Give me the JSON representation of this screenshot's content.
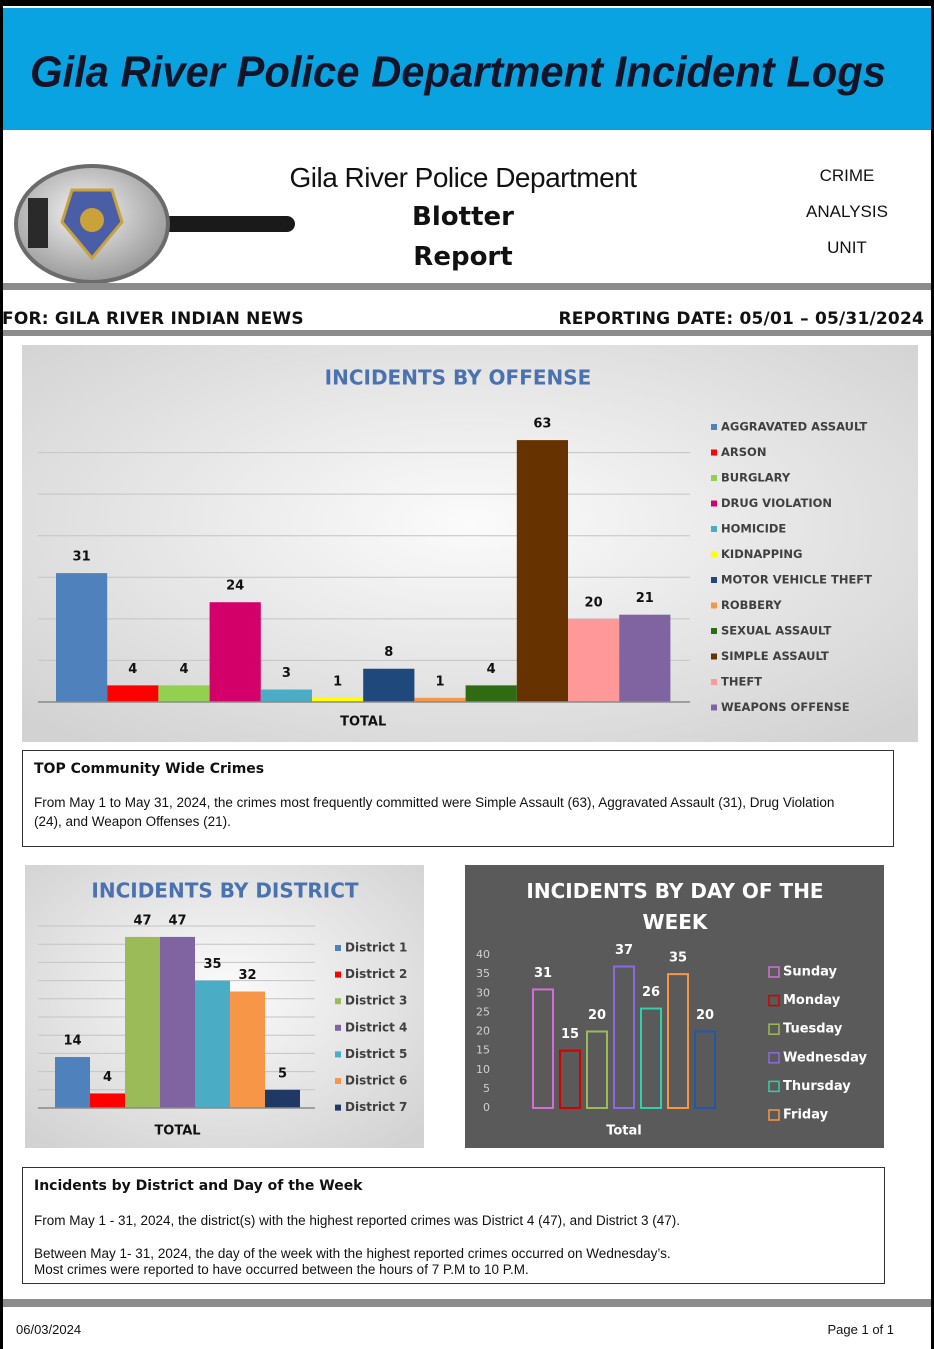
{
  "header": {
    "title": "Gila River Police Department Incident Logs",
    "department": "Gila River Police Department",
    "report_line1": "Blotter",
    "report_line2": "Report",
    "unit": [
      "CRIME",
      "ANALYSIS",
      "UNIT"
    ]
  },
  "banner": {
    "for": "FOR: GILA RIVER INDIAN NEWS",
    "reporting_date": "REPORTING DATE: 05/01 – 05/31/2024"
  },
  "chart_data": [
    {
      "type": "bar",
      "title": "INCIDENTS BY OFFENSE",
      "categories": [
        "TOTAL"
      ],
      "series": [
        {
          "name": "AGGRAVATED ASSAULT",
          "color": "#4f81bd",
          "values": [
            31
          ]
        },
        {
          "name": "ARSON",
          "color": "#ff0000",
          "values": [
            4
          ]
        },
        {
          "name": "BURGLARY",
          "color": "#92d050",
          "values": [
            4
          ]
        },
        {
          "name": "DRUG VIOLATION",
          "color": "#d4006a",
          "values": [
            24
          ]
        },
        {
          "name": "HOMICIDE",
          "color": "#4bacc6",
          "values": [
            3
          ]
        },
        {
          "name": "KIDNAPPING",
          "color": "#ffff00",
          "values": [
            1
          ]
        },
        {
          "name": "MOTOR VEHICLE THEFT",
          "color": "#1f497d",
          "values": [
            8
          ]
        },
        {
          "name": "ROBBERY",
          "color": "#f79646",
          "values": [
            1
          ]
        },
        {
          "name": "SEXUAL ASSAULT",
          "color": "#2f6b12",
          "values": [
            4
          ]
        },
        {
          "name": "SIMPLE ASSAULT",
          "color": "#663300",
          "values": [
            63
          ]
        },
        {
          "name": "THEFT",
          "color": "#ff9999",
          "values": [
            20
          ]
        },
        {
          "name": "WEAPONS OFFENSE",
          "color": "#8064a2",
          "values": [
            21
          ]
        }
      ],
      "ylim": [
        0,
        70
      ],
      "yticks": [
        0,
        10,
        20,
        30,
        40,
        50,
        60
      ],
      "grid": true,
      "legend": "right"
    },
    {
      "type": "bar",
      "title": "INCIDENTS BY DISTRICT",
      "categories": [
        "TOTAL"
      ],
      "series": [
        {
          "name": "District 1",
          "color": "#4f81bd",
          "values": [
            14
          ]
        },
        {
          "name": "District 2",
          "color": "#ff0000",
          "values": [
            4
          ]
        },
        {
          "name": "District 3",
          "color": "#9bbb59",
          "values": [
            47
          ]
        },
        {
          "name": "District 4",
          "color": "#8064a2",
          "values": [
            47
          ]
        },
        {
          "name": "District 5",
          "color": "#4bacc6",
          "values": [
            35
          ]
        },
        {
          "name": "District 6",
          "color": "#f79646",
          "values": [
            32
          ]
        },
        {
          "name": "District 7",
          "color": "#1f3864",
          "values": [
            5
          ]
        }
      ],
      "ylim": [
        0,
        50
      ],
      "yticks": [
        0,
        5,
        10,
        15,
        20,
        25,
        30,
        35,
        40,
        45,
        50
      ],
      "grid": true,
      "legend": "right"
    },
    {
      "type": "bar",
      "title": "INCIDENTS BY DAY OF THE WEEK",
      "categories": [
        "Total"
      ],
      "series": [
        {
          "name": "Sunday",
          "color": "#d36fd3",
          "values": [
            31
          ]
        },
        {
          "name": "Monday",
          "color": "#d40000",
          "values": [
            15
          ]
        },
        {
          "name": "Tuesday",
          "color": "#9bbb59",
          "values": [
            20
          ]
        },
        {
          "name": "Wednesday",
          "color": "#8a6ae0",
          "values": [
            37
          ]
        },
        {
          "name": "Thursday",
          "color": "#2fd1a8",
          "values": [
            26
          ]
        },
        {
          "name": "Friday",
          "color": "#f79646",
          "values": [
            35
          ]
        },
        {
          "name": null,
          "color": "#2456a8",
          "values": [
            20
          ]
        }
      ],
      "ylim": [
        0,
        40
      ],
      "yticks": [
        0,
        5,
        10,
        15,
        20,
        25,
        30,
        35,
        40
      ],
      "grid": false,
      "bar_fill": false,
      "legend": "right"
    }
  ],
  "box1": {
    "heading": "TOP Community Wide Crimes",
    "text": "From May 1 to May 31, 2024, the crimes most frequently committed were Simple Assault (63), Aggravated Assault (31), Drug Violation (24), and Weapon Offenses (21)."
  },
  "box2": {
    "heading": "Incidents by District and Day of the Week",
    "paragraph1": "From May 1 - 31, 2024, the district(s) with the highest reported crimes was District 4 (47), and District 3 (47).",
    "paragraph2_line1": "Between May 1- 31, 2024, the day of the week with the highest reported crimes occurred on Wednesday’s.",
    "paragraph2_line2": "Most crimes were reported to have occurred between the hours of 7 P.M to 10 P.M."
  },
  "footer": {
    "date": "06/03/2024",
    "page": "Page 1 of 1"
  }
}
